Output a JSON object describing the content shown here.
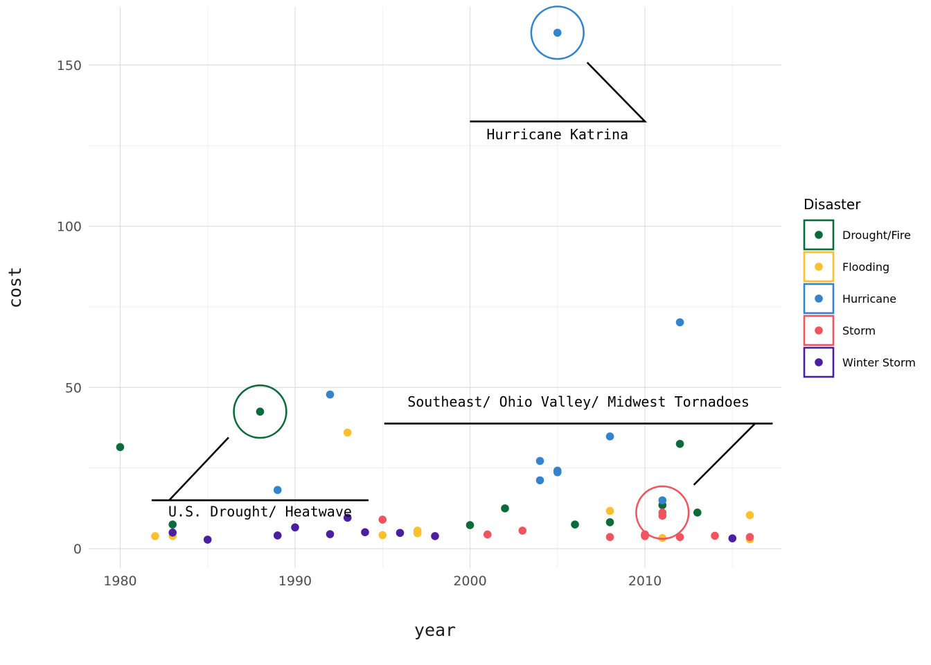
{
  "chart_data": {
    "type": "scatter",
    "xlabel": "year",
    "ylabel": "cost",
    "xlim": [
      1978.2,
      2017.8
    ],
    "ylim": [
      -6,
      168
    ],
    "x_ticks": [
      1980,
      1990,
      2000,
      2010
    ],
    "y_ticks": [
      0,
      50,
      100,
      150
    ],
    "grid": true,
    "legend": {
      "title": "Disaster",
      "position": "right",
      "entries": [
        "Drought/Fire",
        "Flooding",
        "Hurricane",
        "Storm",
        "Winter Storm"
      ]
    },
    "colors": {
      "Drought/Fire": "#0b6b3a",
      "Flooding": "#fbc02d",
      "Hurricane": "#3384cc",
      "Storm": "#f0555f",
      "Winter Storm": "#4a1fa0"
    },
    "series": [
      {
        "name": "Drought/Fire",
        "points": [
          [
            1980,
            31.5
          ],
          [
            1983,
            7.5
          ],
          [
            1988,
            42.5
          ],
          [
            2000,
            7.3
          ],
          [
            2002,
            12.5
          ],
          [
            2006,
            7.5
          ],
          [
            2008,
            8.2
          ],
          [
            2011,
            13.5
          ],
          [
            2012,
            32.5
          ],
          [
            2013,
            11.2
          ]
        ]
      },
      {
        "name": "Flooding",
        "points": [
          [
            1982,
            3.9
          ],
          [
            1983,
            3.9
          ],
          [
            1993,
            36
          ],
          [
            1995,
            4.2
          ],
          [
            1997,
            5.6
          ],
          [
            1997,
            4.8
          ],
          [
            2008,
            11.7
          ],
          [
            2011,
            3.3
          ],
          [
            2016,
            10.4
          ],
          [
            2016,
            2.9
          ]
        ]
      },
      {
        "name": "Hurricane",
        "points": [
          [
            1989,
            18.2
          ],
          [
            1992,
            47.8
          ],
          [
            2004,
            27.2
          ],
          [
            2004,
            21.2
          ],
          [
            2005,
            24.2
          ],
          [
            2005,
            23.7
          ],
          [
            2005,
            160
          ],
          [
            2008,
            34.8
          ],
          [
            2011,
            15
          ],
          [
            2012,
            70.2
          ]
        ]
      },
      {
        "name": "Storm",
        "points": [
          [
            1995,
            9
          ],
          [
            2001,
            4.4
          ],
          [
            2003,
            5.6
          ],
          [
            2008,
            3.6
          ],
          [
            2010,
            4.4
          ],
          [
            2010,
            3.9
          ],
          [
            2011,
            11.2
          ],
          [
            2011,
            10.2
          ],
          [
            2012,
            3.6
          ],
          [
            2014,
            4
          ],
          [
            2016,
            3.6
          ]
        ]
      },
      {
        "name": "Winter Storm",
        "points": [
          [
            1983,
            5
          ],
          [
            1985,
            2.8
          ],
          [
            1989,
            4.1
          ],
          [
            1990,
            6.6
          ],
          [
            1992,
            4.5
          ],
          [
            1993,
            9.6
          ],
          [
            1994,
            5.1
          ],
          [
            1996,
            4.9
          ],
          [
            1998,
            3.9
          ],
          [
            2015,
            3.2
          ]
        ]
      }
    ],
    "annotations": [
      {
        "label": "Hurricane Katrina",
        "series": "Hurricane",
        "target": [
          2005,
          160
        ],
        "circle_radius_x": 1.5,
        "connector": [
          [
            2006.7,
            150.8
          ],
          [
            2010,
            132.5
          ],
          [
            2000,
            132.5
          ]
        ],
        "label_at": [
          2005,
          127
        ]
      },
      {
        "label": "U.S. Drought/ Heatwave",
        "series": "Drought/Fire",
        "target": [
          1988,
          42.5
        ],
        "circle_radius_x": 1.5,
        "connector": [
          [
            1986.2,
            34.5
          ],
          [
            1982.8,
            15
          ],
          [
            1981.8,
            15
          ],
          [
            1994.2,
            15
          ]
        ],
        "label_at": [
          1988,
          10
        ]
      },
      {
        "label": "Southeast/ Ohio Valley/ Midwest Tornadoes",
        "series": "Storm",
        "target": [
          2011,
          11.2
        ],
        "circle_radius_x": 1.5,
        "connector": [
          [
            2012.8,
            19.8
          ],
          [
            2016.3,
            38.8
          ],
          [
            2017.3,
            38.8
          ],
          [
            1995.1,
            38.8
          ]
        ],
        "label_at": [
          2006.2,
          44
        ]
      }
    ]
  }
}
